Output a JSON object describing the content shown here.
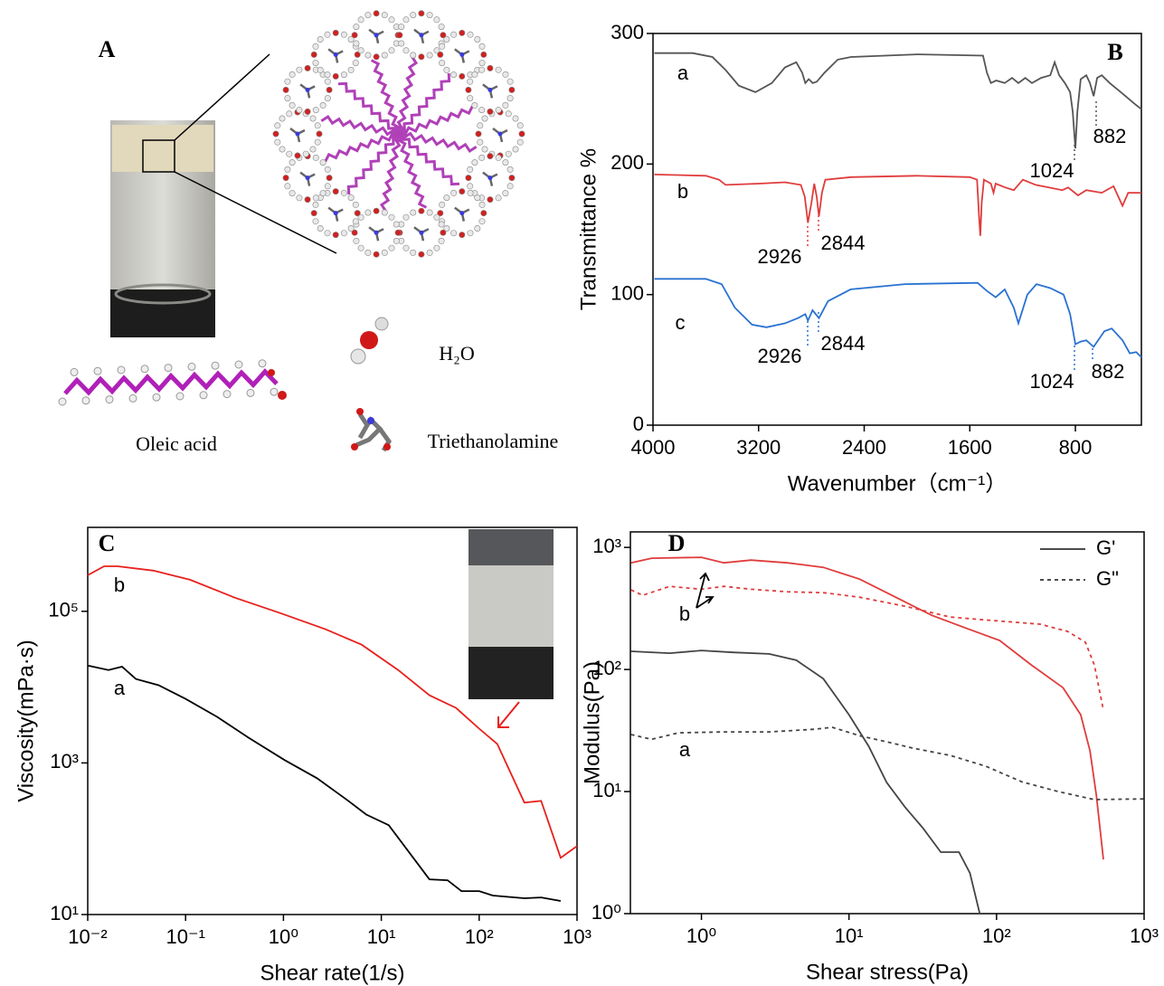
{
  "panel_a": {
    "label": "A",
    "molecules": [
      "Oleic acid",
      "H₂O",
      "Triethanolamine"
    ]
  },
  "chart_data": [
    {
      "type": "line",
      "label": "B",
      "xlabel": "Wavenumber（cm⁻¹）",
      "ylabel": "Transmittance %",
      "xlim": [
        4000,
        300
      ],
      "ylim": [
        0,
        300
      ],
      "xticks": [
        4000,
        3200,
        2400,
        1600,
        800
      ],
      "yticks": [
        0,
        100,
        200,
        300
      ],
      "log_x": false,
      "log_y": false,
      "series": [
        {
          "name": "a",
          "color": "#555555",
          "x": [
            3990,
            3700,
            3550,
            3450,
            3350,
            3224,
            3100,
            3000,
            2915,
            2870,
            2846,
            2820,
            2790,
            2760,
            2700,
            2600,
            2500,
            2000,
            1500,
            1470,
            1440,
            1400,
            1335,
            1280,
            1232,
            1180,
            1129,
            1060,
            990,
            957,
            923,
            880,
            840,
            820,
            800,
            785,
            760,
            717,
            690,
            662,
            635,
            600,
            540,
            443,
            350,
            300
          ],
          "values": [
            285,
            285,
            282,
            272,
            260,
            255,
            262,
            274,
            278,
            270,
            262,
            265,
            262,
            263,
            270,
            280,
            282,
            284,
            283,
            270,
            262,
            264,
            262,
            266,
            262,
            266,
            262,
            266,
            268,
            278,
            268,
            262,
            255,
            240,
            212,
            240,
            265,
            268,
            262,
            252,
            266,
            268,
            262,
            254,
            246,
            242
          ]
        },
        {
          "name": "b",
          "color": "#e03c3c",
          "x": [
            3990,
            3600,
            3500,
            3450,
            3200,
            3000,
            2880,
            2850,
            2826,
            2800,
            2778,
            2760,
            2743,
            2720,
            2695,
            2500,
            2000,
            1600,
            1545,
            1530,
            1520,
            1510,
            1493,
            1440,
            1420,
            1404,
            1330,
            1267,
            1198,
            1100,
            1000,
            900,
            854,
            780,
            717,
            600,
            511,
            443,
            400,
            300
          ],
          "values": [
            192,
            191,
            188,
            184,
            185,
            186,
            184,
            175,
            155,
            170,
            185,
            175,
            160,
            178,
            188,
            190,
            191,
            190,
            188,
            160,
            145,
            170,
            188,
            185,
            178,
            185,
            182,
            180,
            188,
            184,
            182,
            180,
            182,
            176,
            180,
            178,
            183,
            168,
            178,
            178
          ]
        },
        {
          "name": "c",
          "color": "#2a72d0",
          "x": [
            3990,
            3600,
            3480,
            3380,
            3250,
            3140,
            3000,
            2900,
            2846,
            2826,
            2791,
            2743,
            2674,
            2503,
            2091,
            1541,
            1473,
            1404,
            1335,
            1267,
            1232,
            1164,
            1095,
            991,
            889,
            840,
            800,
            760,
            717,
            662,
            580,
            525,
            443,
            388,
            340,
            300
          ],
          "values": [
            112,
            112,
            108,
            90,
            77,
            75,
            78,
            82,
            85,
            80,
            88,
            82,
            95,
            104,
            108,
            109,
            103,
            98,
            104,
            90,
            78,
            100,
            108,
            105,
            100,
            85,
            62,
            64,
            65,
            60,
            72,
            74,
            65,
            55,
            56,
            52
          ]
        }
      ],
      "annotations": [
        {
          "text": "1024",
          "color": "#555555"
        },
        {
          "text": "882",
          "color": "#555555"
        },
        {
          "text": "2926",
          "color": "#e03c3c"
        },
        {
          "text": "2844",
          "color": "#e03c3c"
        },
        {
          "text": "2926",
          "color": "#2a72d0"
        },
        {
          "text": "2844",
          "color": "#2a72d0"
        },
        {
          "text": "1024",
          "color": "#2a72d0"
        },
        {
          "text": "882",
          "color": "#2a72d0"
        }
      ]
    },
    {
      "type": "line",
      "label": "C",
      "xlabel": "Shear rate(1/s)",
      "ylabel": "Viscosity(mPa·s)",
      "xlim": [
        0.01,
        1000
      ],
      "ylim": [
        10,
        1280000
      ],
      "log_x": true,
      "log_y": true,
      "xticks": [
        {
          "value": 0.01,
          "label": "10⁻²"
        },
        {
          "value": 0.1,
          "label": "10⁻¹"
        },
        {
          "value": 1,
          "label": "10⁰"
        },
        {
          "value": 10,
          "label": "10¹"
        },
        {
          "value": 100,
          "label": "10²"
        },
        {
          "value": 1000,
          "label": "10³"
        }
      ],
      "yticks": [
        {
          "value": 10,
          "label": "10¹"
        },
        {
          "value": 1000,
          "label": "10³"
        },
        {
          "value": 100000,
          "label": "10⁵"
        }
      ],
      "series": [
        {
          "name": "a",
          "color": "#000000",
          "x": [
            0.01,
            0.0163,
            0.0224,
            0.031,
            0.053,
            0.1,
            0.21,
            0.44,
            1.03,
            2.2,
            4.6,
            7,
            11.9,
            31,
            47.5,
            65.9,
            100,
            138,
            290,
            430,
            680
          ],
          "values": [
            19300,
            16800,
            18600,
            12800,
            10600,
            7000,
            4050,
            2150,
            1090,
            628,
            316,
            209,
            151,
            29.1,
            28.3,
            20.4,
            20.4,
            17.8,
            16.4,
            16.8,
            15.1
          ]
        },
        {
          "name": "b",
          "color": "#e8201c",
          "x": [
            0.01,
            0.0147,
            0.0202,
            0.047,
            0.111,
            0.32,
            0.93,
            2.7,
            6.3,
            14.9,
            31,
            58,
            100,
            153,
            290,
            430,
            680,
            1000
          ],
          "values": [
            299000,
            393000,
            393000,
            344000,
            261000,
            151000,
            94700,
            57800,
            36300,
            16800,
            7800,
            5320,
            2830,
            1780,
            299,
            316,
            56,
            80
          ]
        }
      ]
    },
    {
      "type": "line",
      "label": "D",
      "xlabel": "Shear stress(Pa)",
      "ylabel": "Modulus(Pa)",
      "xlim": [
        0.33,
        1000
      ],
      "ylim": [
        1,
        1340
      ],
      "log_x": true,
      "log_y": true,
      "xticks": [
        {
          "value": 1,
          "label": "10⁰"
        },
        {
          "value": 10,
          "label": "10¹"
        },
        {
          "value": 100,
          "label": "10²"
        },
        {
          "value": 1000,
          "label": "10³"
        }
      ],
      "yticks": [
        {
          "value": 1,
          "label": "10⁰"
        },
        {
          "value": 10,
          "label": "10¹"
        },
        {
          "value": 100,
          "label": "10²"
        },
        {
          "value": 1000,
          "label": "10³"
        }
      ],
      "legend": [
        {
          "label": "G'",
          "dash": "solid"
        },
        {
          "label": "G\"",
          "dash": "dashed"
        }
      ],
      "sample_labels": [
        {
          "text": "a",
          "color": "#333333"
        },
        {
          "text": "b",
          "color": "#e03c3c"
        }
      ],
      "series": [
        {
          "color": "#e03c3c",
          "dash": "solid",
          "x": [
            0.333,
            0.46,
            1.0,
            1.42,
            2.17,
            3.82,
            6.7,
            11.8,
            20.7,
            36.4,
            64,
            105,
            172,
            282,
            372,
            430,
            475,
            530
          ],
          "values": [
            748,
            815,
            829,
            748,
            787,
            748,
            687,
            550,
            391,
            278,
            215,
            173,
            109,
            71,
            42.6,
            21.5,
            9.2,
            2.78
          ]
        },
        {
          "color": "#e03c3c",
          "dash": "dashed",
          "x": [
            0.333,
            0.4,
            0.61,
            1.0,
            1.42,
            2.17,
            3.82,
            6.7,
            11.8,
            23.9,
            48.3,
            98,
            197,
            303,
            400,
            460,
            530
          ],
          "values": [
            449,
            405,
            480,
            454,
            480,
            454,
            433,
            426,
            391,
            330,
            269,
            251,
            235,
            205,
            167,
            109,
            46.4
          ]
        },
        {
          "color": "#444444",
          "dash": "solid",
          "x": [
            0.333,
            0.61,
            1.0,
            1.64,
            2.88,
            4.4,
            6.7,
            10,
            13.6,
            18,
            23.9,
            31.6,
            41.9,
            55.6,
            66,
            77
          ],
          "values": [
            141,
            136,
            143,
            138,
            134,
            119,
            84,
            42.6,
            23.5,
            11.9,
            7.5,
            5.05,
            3.19,
            3.19,
            2.15,
            1
          ]
        },
        {
          "color": "#444444",
          "dash": "dashed",
          "x": [
            0.333,
            0.46,
            0.7,
            1.42,
            2.88,
            5.8,
            7.7,
            11.8,
            18,
            27.5,
            48.3,
            84.7,
            149,
            262,
            460,
            1000
          ],
          "values": [
            29.3,
            26.8,
            30.3,
            30.8,
            30.8,
            32.4,
            33.6,
            28.7,
            25.6,
            22.6,
            19.8,
            16.1,
            12,
            10,
            8.6,
            8.7
          ]
        }
      ]
    }
  ]
}
